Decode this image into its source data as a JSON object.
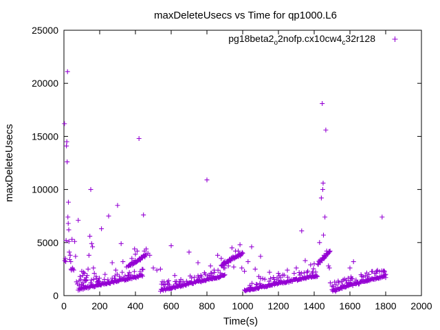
{
  "chart_data": {
    "type": "scatter",
    "title": "maxDeleteUsecs vs Time for qp1000.L6",
    "xlabel": "Time(s)",
    "ylabel": "maxDeleteUsecs",
    "xlim": [
      0,
      2000
    ],
    "ylim": [
      0,
      25000
    ],
    "xticks": [
      0,
      200,
      400,
      600,
      800,
      1000,
      1200,
      1400,
      1600,
      1800,
      2000
    ],
    "yticks": [
      0,
      5000,
      10000,
      15000,
      20000,
      25000
    ],
    "xtick_labels": [
      "0",
      "200",
      "400",
      "600",
      "800",
      "1000",
      "1200",
      "1400",
      "1600",
      "1800",
      "2000"
    ],
    "ytick_labels": [
      "0",
      "5000",
      "10000",
      "15000",
      "20000",
      "25000"
    ],
    "grid": false,
    "legend_position": "top-right",
    "series": [
      {
        "name": "pg18beta2_o2nofp.cx10cw4_c32r128",
        "legend_parts": {
          "base": "pg18beta2",
          "sub1": "o",
          "mid": "2nofp.cx10cw4",
          "sub2": "c",
          "tail": "32r128"
        },
        "color": "#9400d3",
        "marker": "plus",
        "points": [
          [
            3,
            16200
          ],
          [
            5,
            3300
          ],
          [
            8,
            3500
          ],
          [
            10,
            3200
          ],
          [
            12,
            5200
          ],
          [
            14,
            14100
          ],
          [
            16,
            14500
          ],
          [
            18,
            12600
          ],
          [
            20,
            21100
          ],
          [
            22,
            7400
          ],
          [
            24,
            6800
          ],
          [
            25,
            8800
          ],
          [
            27,
            6200
          ],
          [
            28,
            5100
          ],
          [
            30,
            4100
          ],
          [
            32,
            3400
          ],
          [
            35,
            3800
          ],
          [
            38,
            3200
          ],
          [
            40,
            2500
          ],
          [
            42,
            2400
          ],
          [
            45,
            5300
          ],
          [
            48,
            2600
          ],
          [
            50,
            2500
          ],
          [
            55,
            2400
          ],
          [
            60,
            5100
          ],
          [
            65,
            3700
          ],
          [
            70,
            1300
          ],
          [
            75,
            1100
          ],
          [
            80,
            7100
          ],
          [
            85,
            1400
          ],
          [
            90,
            1800
          ],
          [
            95,
            1500
          ],
          [
            100,
            2300
          ],
          [
            105,
            1900
          ],
          [
            110,
            2200
          ],
          [
            115,
            2100
          ],
          [
            120,
            1500
          ],
          [
            125,
            1700
          ],
          [
            130,
            1900
          ],
          [
            135,
            2500
          ],
          [
            140,
            3800
          ],
          [
            145,
            5600
          ],
          [
            150,
            10000
          ],
          [
            155,
            4900
          ],
          [
            160,
            4600
          ],
          [
            165,
            2600
          ],
          [
            170,
            2100
          ],
          [
            180,
            1800
          ],
          [
            200,
            1300
          ],
          [
            210,
            6300
          ],
          [
            230,
            2000
          ],
          [
            250,
            7500
          ],
          [
            270,
            3100
          ],
          [
            290,
            2400
          ],
          [
            300,
            8500
          ],
          [
            320,
            4900
          ],
          [
            330,
            3200
          ],
          [
            350,
            2700
          ],
          [
            380,
            3500
          ],
          [
            395,
            4400
          ],
          [
            400,
            3900
          ],
          [
            410,
            4200
          ],
          [
            420,
            14800
          ],
          [
            435,
            3600
          ],
          [
            445,
            7600
          ],
          [
            450,
            4200
          ],
          [
            460,
            4400
          ],
          [
            470,
            4000
          ],
          [
            480,
            3800
          ],
          [
            500,
            2600
          ],
          [
            520,
            2400
          ],
          [
            540,
            2500
          ],
          [
            560,
            1300
          ],
          [
            600,
            4700
          ],
          [
            620,
            1900
          ],
          [
            650,
            1200
          ],
          [
            700,
            4100
          ],
          [
            750,
            3100
          ],
          [
            800,
            10900
          ],
          [
            820,
            2800
          ],
          [
            840,
            2400
          ],
          [
            860,
            3800
          ],
          [
            880,
            3500
          ],
          [
            900,
            2600
          ],
          [
            920,
            2800
          ],
          [
            940,
            4500
          ],
          [
            950,
            2700
          ],
          [
            960,
            4200
          ],
          [
            975,
            4200
          ],
          [
            985,
            4800
          ],
          [
            995,
            2600
          ],
          [
            1010,
            2300
          ],
          [
            1030,
            3200
          ],
          [
            1050,
            4600
          ],
          [
            1070,
            2500
          ],
          [
            1090,
            1800
          ],
          [
            1100,
            3700
          ],
          [
            1150,
            2200
          ],
          [
            1200,
            2100
          ],
          [
            1250,
            2400
          ],
          [
            1300,
            2600
          ],
          [
            1330,
            6100
          ],
          [
            1350,
            3300
          ],
          [
            1380,
            2900
          ],
          [
            1400,
            3000
          ],
          [
            1430,
            5000
          ],
          [
            1440,
            9200
          ],
          [
            1445,
            18100
          ],
          [
            1448,
            10000
          ],
          [
            1450,
            10600
          ],
          [
            1452,
            5700
          ],
          [
            1455,
            3800
          ],
          [
            1460,
            7400
          ],
          [
            1465,
            15600
          ],
          [
            1470,
            4200
          ],
          [
            1475,
            3900
          ],
          [
            1480,
            2800
          ],
          [
            1485,
            2600
          ],
          [
            1490,
            1200
          ],
          [
            1500,
            900
          ],
          [
            1520,
            400
          ],
          [
            1550,
            700
          ],
          [
            1600,
            2600
          ],
          [
            1620,
            3200
          ],
          [
            1650,
            1100
          ],
          [
            1700,
            1600
          ],
          [
            1750,
            2300
          ],
          [
            1780,
            7400
          ],
          [
            1790,
            1800
          ],
          [
            1800,
            1700
          ]
        ],
        "band_segments": [
          {
            "x": [
              80,
              440
            ],
            "y": [
              600,
              1900
            ]
          },
          {
            "x": [
              540,
              900
            ],
            "y": [
              500,
              1900
            ]
          },
          {
            "x": [
              1010,
              1420
            ],
            "y": [
              500,
              1900
            ]
          },
          {
            "x": [
              1500,
              1800
            ],
            "y": [
              500,
              1900
            ]
          }
        ],
        "upper_segments": [
          {
            "x": [
              360,
              460
            ],
            "y": [
              2800,
              3800
            ]
          },
          {
            "x": [
              880,
              1000
            ],
            "y": [
              2900,
              4000
            ]
          },
          {
            "x": [
              1420,
              1490
            ],
            "y": [
              3000,
              4200
            ]
          }
        ]
      }
    ]
  }
}
